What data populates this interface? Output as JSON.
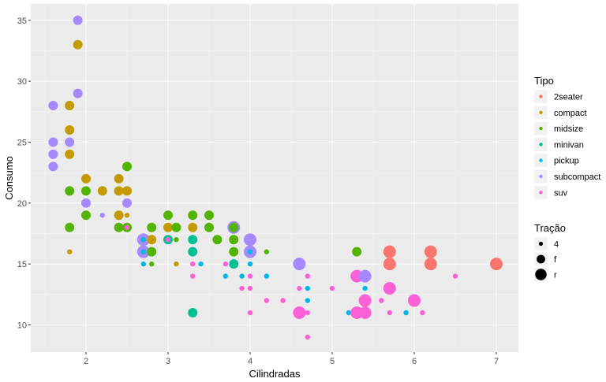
{
  "chart_data": {
    "type": "scatter",
    "title": "",
    "xlabel": "Cilindradas",
    "ylabel": "Consumo",
    "xlim": [
      1.33,
      7.27
    ],
    "ylim": [
      7.7,
      36.3
    ],
    "x_ticks": [
      2,
      3,
      4,
      5,
      6,
      7
    ],
    "y_ticks": [
      10,
      15,
      20,
      25,
      30,
      35
    ],
    "grid": true,
    "legend_position": "right",
    "color_legend": {
      "title": "Tipo",
      "entries": [
        {
          "label": "2seater",
          "color": "#F8766D"
        },
        {
          "label": "compact",
          "color": "#C49A00"
        },
        {
          "label": "midsize",
          "color": "#53B400"
        },
        {
          "label": "minivan",
          "color": "#00C094"
        },
        {
          "label": "pickup",
          "color": "#00B6EB"
        },
        {
          "label": "subcompact",
          "color": "#A58AFF"
        },
        {
          "label": "suv",
          "color": "#FB61D7"
        }
      ]
    },
    "size_legend": {
      "title": "Tração",
      "entries": [
        {
          "label": "4",
          "radius": 3.2
        },
        {
          "label": "f",
          "radius": 6
        },
        {
          "label": "r",
          "radius": 8
        }
      ]
    },
    "points": [
      {
        "x": 1.9,
        "y": 35,
        "class": "subcompact",
        "drv": "f"
      },
      {
        "x": 1.9,
        "y": 33,
        "class": "compact",
        "drv": "f"
      },
      {
        "x": 1.9,
        "y": 29,
        "class": "subcompact",
        "drv": "f"
      },
      {
        "x": 1.6,
        "y": 28,
        "class": "subcompact",
        "drv": "f"
      },
      {
        "x": 1.8,
        "y": 28,
        "class": "compact",
        "drv": "f"
      },
      {
        "x": 1.8,
        "y": 26,
        "class": "compact",
        "drv": "f"
      },
      {
        "x": 1.6,
        "y": 25,
        "class": "subcompact",
        "drv": "f"
      },
      {
        "x": 1.8,
        "y": 25,
        "class": "subcompact",
        "drv": "f"
      },
      {
        "x": 1.6,
        "y": 24,
        "class": "subcompact",
        "drv": "f"
      },
      {
        "x": 1.8,
        "y": 24,
        "class": "compact",
        "drv": "f"
      },
      {
        "x": 1.6,
        "y": 23,
        "class": "subcompact",
        "drv": "f"
      },
      {
        "x": 2.5,
        "y": 23,
        "class": "midsize",
        "drv": "f"
      },
      {
        "x": 2.0,
        "y": 22,
        "class": "compact",
        "drv": "f"
      },
      {
        "x": 2.4,
        "y": 22,
        "class": "compact",
        "drv": "f"
      },
      {
        "x": 1.8,
        "y": 21,
        "class": "midsize",
        "drv": "f"
      },
      {
        "x": 2.0,
        "y": 21,
        "class": "midsize",
        "drv": "f"
      },
      {
        "x": 2.2,
        "y": 21,
        "class": "compact",
        "drv": "f"
      },
      {
        "x": 2.4,
        "y": 21,
        "class": "compact",
        "drv": "f"
      },
      {
        "x": 2.5,
        "y": 21,
        "class": "compact",
        "drv": "f"
      },
      {
        "x": 2.0,
        "y": 20,
        "class": "subcompact",
        "drv": "f"
      },
      {
        "x": 2.5,
        "y": 20,
        "class": "subcompact",
        "drv": "f"
      },
      {
        "x": 2.0,
        "y": 19,
        "class": "midsize",
        "drv": "f"
      },
      {
        "x": 2.2,
        "y": 19,
        "class": "subcompact",
        "drv": "4"
      },
      {
        "x": 2.4,
        "y": 19,
        "class": "compact",
        "drv": "f"
      },
      {
        "x": 2.5,
        "y": 19,
        "class": "compact",
        "drv": "4"
      },
      {
        "x": 3.0,
        "y": 19,
        "class": "midsize",
        "drv": "f"
      },
      {
        "x": 3.3,
        "y": 19,
        "class": "midsize",
        "drv": "f"
      },
      {
        "x": 3.5,
        "y": 19,
        "class": "midsize",
        "drv": "f"
      },
      {
        "x": 1.8,
        "y": 18,
        "class": "midsize",
        "drv": "f"
      },
      {
        "x": 2.4,
        "y": 18,
        "class": "midsize",
        "drv": "f"
      },
      {
        "x": 2.5,
        "y": 18,
        "class": "midsize",
        "drv": "f"
      },
      {
        "x": 2.5,
        "y": 18,
        "class": "suv",
        "drv": "4"
      },
      {
        "x": 2.8,
        "y": 18,
        "class": "midsize",
        "drv": "f"
      },
      {
        "x": 3.0,
        "y": 18,
        "class": "compact",
        "drv": "f"
      },
      {
        "x": 3.1,
        "y": 18,
        "class": "midsize",
        "drv": "f"
      },
      {
        "x": 3.3,
        "y": 18,
        "class": "compact",
        "drv": "f"
      },
      {
        "x": 3.5,
        "y": 18,
        "class": "midsize",
        "drv": "f"
      },
      {
        "x": 3.8,
        "y": 18,
        "class": "subcompact",
        "drv": "r"
      },
      {
        "x": 3.8,
        "y": 18,
        "class": "midsize",
        "drv": "f"
      },
      {
        "x": 2.7,
        "y": 17,
        "class": "subcompact",
        "drv": "r"
      },
      {
        "x": 2.7,
        "y": 17,
        "class": "pickup",
        "drv": "4"
      },
      {
        "x": 2.8,
        "y": 17,
        "class": "compact",
        "drv": "f"
      },
      {
        "x": 3.0,
        "y": 17,
        "class": "minivan",
        "drv": "f"
      },
      {
        "x": 3.0,
        "y": 17,
        "class": "suv",
        "drv": "4"
      },
      {
        "x": 3.1,
        "y": 17,
        "class": "midsize",
        "drv": "4"
      },
      {
        "x": 3.3,
        "y": 17,
        "class": "minivan",
        "drv": "f"
      },
      {
        "x": 3.6,
        "y": 17,
        "class": "midsize",
        "drv": "f"
      },
      {
        "x": 3.8,
        "y": 17,
        "class": "midsize",
        "drv": "f"
      },
      {
        "x": 4.0,
        "y": 17,
        "class": "subcompact",
        "drv": "r"
      },
      {
        "x": 1.8,
        "y": 16,
        "class": "compact",
        "drv": "4"
      },
      {
        "x": 2.7,
        "y": 16,
        "class": "subcompact",
        "drv": "r"
      },
      {
        "x": 2.7,
        "y": 16,
        "class": "pickup",
        "drv": "4"
      },
      {
        "x": 2.8,
        "y": 16,
        "class": "midsize",
        "drv": "f"
      },
      {
        "x": 3.3,
        "y": 16,
        "class": "minivan",
        "drv": "f"
      },
      {
        "x": 3.8,
        "y": 16,
        "class": "midsize",
        "drv": "f"
      },
      {
        "x": 4.0,
        "y": 16,
        "class": "subcompact",
        "drv": "r"
      },
      {
        "x": 4.0,
        "y": 16,
        "class": "pickup",
        "drv": "4"
      },
      {
        "x": 4.2,
        "y": 16,
        "class": "midsize",
        "drv": "4"
      },
      {
        "x": 5.3,
        "y": 16,
        "class": "midsize",
        "drv": "f"
      },
      {
        "x": 5.7,
        "y": 16,
        "class": "2seater",
        "drv": "r"
      },
      {
        "x": 6.2,
        "y": 16,
        "class": "2seater",
        "drv": "r"
      },
      {
        "x": 2.7,
        "y": 15,
        "class": "pickup",
        "drv": "4"
      },
      {
        "x": 2.8,
        "y": 15,
        "class": "midsize",
        "drv": "4"
      },
      {
        "x": 3.1,
        "y": 15,
        "class": "compact",
        "drv": "4"
      },
      {
        "x": 3.3,
        "y": 15,
        "class": "suv",
        "drv": "4"
      },
      {
        "x": 3.4,
        "y": 15,
        "class": "pickup",
        "drv": "4"
      },
      {
        "x": 3.7,
        "y": 15,
        "class": "suv",
        "drv": "4"
      },
      {
        "x": 3.8,
        "y": 15,
        "class": "minivan",
        "drv": "f"
      },
      {
        "x": 4.0,
        "y": 15,
        "class": "pickup",
        "drv": "4"
      },
      {
        "x": 4.6,
        "y": 15,
        "class": "subcompact",
        "drv": "r"
      },
      {
        "x": 5.7,
        "y": 15,
        "class": "2seater",
        "drv": "r"
      },
      {
        "x": 6.2,
        "y": 15,
        "class": "2seater",
        "drv": "r"
      },
      {
        "x": 7.0,
        "y": 15,
        "class": "2seater",
        "drv": "r"
      },
      {
        "x": 3.3,
        "y": 14,
        "class": "suv",
        "drv": "4"
      },
      {
        "x": 3.7,
        "y": 14,
        "class": "pickup",
        "drv": "4"
      },
      {
        "x": 3.9,
        "y": 14,
        "class": "pickup",
        "drv": "4"
      },
      {
        "x": 4.0,
        "y": 14,
        "class": "suv",
        "drv": "4"
      },
      {
        "x": 4.2,
        "y": 14,
        "class": "pickup",
        "drv": "4"
      },
      {
        "x": 4.7,
        "y": 14,
        "class": "suv",
        "drv": "4"
      },
      {
        "x": 5.3,
        "y": 14,
        "class": "suv",
        "drv": "r"
      },
      {
        "x": 5.4,
        "y": 14,
        "class": "subcompact",
        "drv": "r"
      },
      {
        "x": 6.5,
        "y": 14,
        "class": "suv",
        "drv": "4"
      },
      {
        "x": 3.9,
        "y": 13,
        "class": "suv",
        "drv": "4"
      },
      {
        "x": 4.0,
        "y": 13,
        "class": "suv",
        "drv": "4"
      },
      {
        "x": 4.6,
        "y": 13,
        "class": "suv",
        "drv": "4"
      },
      {
        "x": 4.7,
        "y": 13,
        "class": "pickup",
        "drv": "4"
      },
      {
        "x": 5.0,
        "y": 13,
        "class": "suv",
        "drv": "4"
      },
      {
        "x": 5.4,
        "y": 13,
        "class": "pickup",
        "drv": "4"
      },
      {
        "x": 5.7,
        "y": 13,
        "class": "suv",
        "drv": "r"
      },
      {
        "x": 4.2,
        "y": 12,
        "class": "suv",
        "drv": "4"
      },
      {
        "x": 4.4,
        "y": 12,
        "class": "suv",
        "drv": "4"
      },
      {
        "x": 4.7,
        "y": 12,
        "class": "pickup",
        "drv": "4"
      },
      {
        "x": 5.4,
        "y": 12,
        "class": "suv",
        "drv": "r"
      },
      {
        "x": 5.6,
        "y": 12,
        "class": "suv",
        "drv": "4"
      },
      {
        "x": 6.0,
        "y": 12,
        "class": "suv",
        "drv": "r"
      },
      {
        "x": 3.3,
        "y": 11,
        "class": "minivan",
        "drv": "f"
      },
      {
        "x": 4.0,
        "y": 11,
        "class": "suv",
        "drv": "4"
      },
      {
        "x": 4.6,
        "y": 11,
        "class": "suv",
        "drv": "r"
      },
      {
        "x": 4.7,
        "y": 11,
        "class": "suv",
        "drv": "4"
      },
      {
        "x": 5.2,
        "y": 11,
        "class": "pickup",
        "drv": "4"
      },
      {
        "x": 5.3,
        "y": 11,
        "class": "suv",
        "drv": "r"
      },
      {
        "x": 5.4,
        "y": 11,
        "class": "suv",
        "drv": "r"
      },
      {
        "x": 5.7,
        "y": 11,
        "class": "suv",
        "drv": "4"
      },
      {
        "x": 5.9,
        "y": 11,
        "class": "pickup",
        "drv": "4"
      },
      {
        "x": 6.1,
        "y": 11,
        "class": "suv",
        "drv": "4"
      },
      {
        "x": 4.7,
        "y": 9,
        "class": "suv",
        "drv": "4"
      }
    ]
  }
}
